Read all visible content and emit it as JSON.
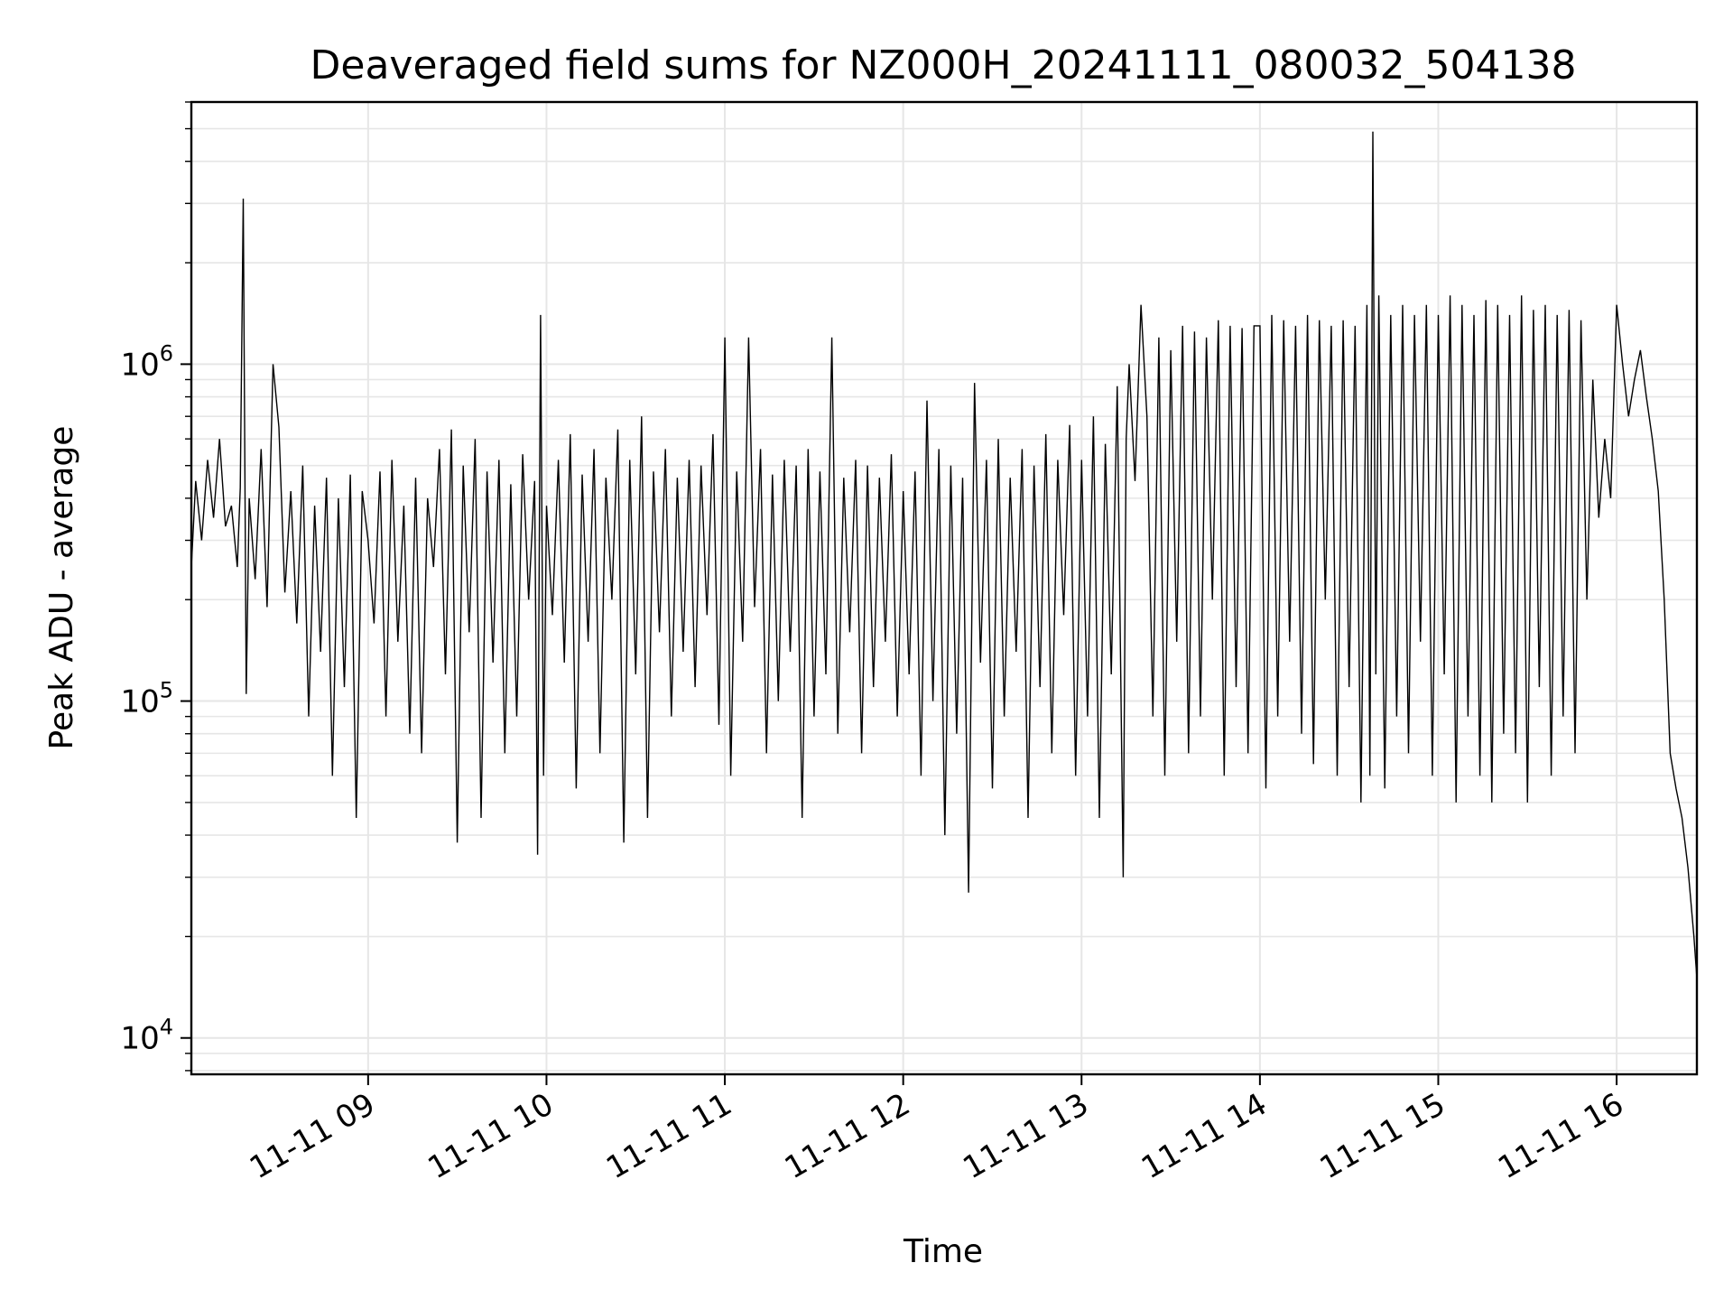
{
  "chart_data": {
    "type": "line",
    "title": "Deaveraged field sums for NZ000H_20241111_080032_504138",
    "xlabel": "Time",
    "ylabel": "Peak ADU - average",
    "y_scale": "log",
    "grid": true,
    "line_color": "#000000",
    "grid_color": "#e6e6e6",
    "xlim": [
      "2024-11-11 08:00:32",
      "2024-11-11 16:27:00"
    ],
    "ylim": [
      7800,
      6000000
    ],
    "x_ticks": [
      {
        "value": "2024-11-11 09:00",
        "label": "11-11 09"
      },
      {
        "value": "2024-11-11 10:00",
        "label": "11-11 10"
      },
      {
        "value": "2024-11-11 11:00",
        "label": "11-11 11"
      },
      {
        "value": "2024-11-11 12:00",
        "label": "11-11 12"
      },
      {
        "value": "2024-11-11 13:00",
        "label": "11-11 13"
      },
      {
        "value": "2024-11-11 14:00",
        "label": "11-11 14"
      },
      {
        "value": "2024-11-11 15:00",
        "label": "11-11 15"
      },
      {
        "value": "2024-11-11 16:00",
        "label": "11-11 16"
      }
    ],
    "y_ticks": [
      {
        "value": 10000,
        "base": "10",
        "exp": "4"
      },
      {
        "value": 100000,
        "base": "10",
        "exp": "5"
      },
      {
        "value": 1000000,
        "base": "10",
        "exp": "6"
      }
    ],
    "series": [
      {
        "x": [
          "2024-11-11 08:00:32",
          "2024-11-11 08:02",
          "2024-11-11 08:04",
          "2024-11-11 08:06",
          "2024-11-11 08:08",
          "2024-11-11 08:10",
          "2024-11-11 08:12",
          "2024-11-11 08:14",
          "2024-11-11 08:16",
          "2024-11-11 08:17",
          "2024-11-11 08:18",
          "2024-11-11 08:19",
          "2024-11-11 08:20",
          "2024-11-11 08:22",
          "2024-11-11 08:24",
          "2024-11-11 08:26",
          "2024-11-11 08:28",
          "2024-11-11 08:30",
          "2024-11-11 08:32",
          "2024-11-11 08:34",
          "2024-11-11 08:36",
          "2024-11-11 08:38",
          "2024-11-11 08:40",
          "2024-11-11 08:42",
          "2024-11-11 08:44",
          "2024-11-11 08:46",
          "2024-11-11 08:48",
          "2024-11-11 08:50",
          "2024-11-11 08:52",
          "2024-11-11 08:54",
          "2024-11-11 08:56",
          "2024-11-11 08:58",
          "2024-11-11 09:00",
          "2024-11-11 09:02",
          "2024-11-11 09:04",
          "2024-11-11 09:06",
          "2024-11-11 09:08",
          "2024-11-11 09:10",
          "2024-11-11 09:12",
          "2024-11-11 09:14",
          "2024-11-11 09:16",
          "2024-11-11 09:18",
          "2024-11-11 09:20",
          "2024-11-11 09:22",
          "2024-11-11 09:24",
          "2024-11-11 09:26",
          "2024-11-11 09:28",
          "2024-11-11 09:30",
          "2024-11-11 09:32",
          "2024-11-11 09:34",
          "2024-11-11 09:36",
          "2024-11-11 09:38",
          "2024-11-11 09:40",
          "2024-11-11 09:42",
          "2024-11-11 09:44",
          "2024-11-11 09:46",
          "2024-11-11 09:48",
          "2024-11-11 09:50",
          "2024-11-11 09:52",
          "2024-11-11 09:54",
          "2024-11-11 09:56",
          "2024-11-11 09:57",
          "2024-11-11 09:58",
          "2024-11-11 09:59",
          "2024-11-11 10:00",
          "2024-11-11 10:02",
          "2024-11-11 10:04",
          "2024-11-11 10:06",
          "2024-11-11 10:08",
          "2024-11-11 10:10",
          "2024-11-11 10:12",
          "2024-11-11 10:14",
          "2024-11-11 10:16",
          "2024-11-11 10:18",
          "2024-11-11 10:20",
          "2024-11-11 10:22",
          "2024-11-11 10:24",
          "2024-11-11 10:26",
          "2024-11-11 10:28",
          "2024-11-11 10:30",
          "2024-11-11 10:32",
          "2024-11-11 10:34",
          "2024-11-11 10:36",
          "2024-11-11 10:38",
          "2024-11-11 10:40",
          "2024-11-11 10:42",
          "2024-11-11 10:44",
          "2024-11-11 10:46",
          "2024-11-11 10:48",
          "2024-11-11 10:50",
          "2024-11-11 10:52",
          "2024-11-11 10:54",
          "2024-11-11 10:56",
          "2024-11-11 10:58",
          "2024-11-11 11:00",
          "2024-11-11 11:02",
          "2024-11-11 11:04",
          "2024-11-11 11:06",
          "2024-11-11 11:08",
          "2024-11-11 11:10",
          "2024-11-11 11:12",
          "2024-11-11 11:14",
          "2024-11-11 11:16",
          "2024-11-11 11:18",
          "2024-11-11 11:20",
          "2024-11-11 11:22",
          "2024-11-11 11:24",
          "2024-11-11 11:26",
          "2024-11-11 11:28",
          "2024-11-11 11:30",
          "2024-11-11 11:32",
          "2024-11-11 11:34",
          "2024-11-11 11:36",
          "2024-11-11 11:38",
          "2024-11-11 11:40",
          "2024-11-11 11:42",
          "2024-11-11 11:44",
          "2024-11-11 11:46",
          "2024-11-11 11:48",
          "2024-11-11 11:50",
          "2024-11-11 11:52",
          "2024-11-11 11:54",
          "2024-11-11 11:56",
          "2024-11-11 11:58",
          "2024-11-11 12:00",
          "2024-11-11 12:02",
          "2024-11-11 12:04",
          "2024-11-11 12:06",
          "2024-11-11 12:08",
          "2024-11-11 12:10",
          "2024-11-11 12:12",
          "2024-11-11 12:14",
          "2024-11-11 12:16",
          "2024-11-11 12:18",
          "2024-11-11 12:20",
          "2024-11-11 12:22",
          "2024-11-11 12:24",
          "2024-11-11 12:26",
          "2024-11-11 12:28",
          "2024-11-11 12:30",
          "2024-11-11 12:32",
          "2024-11-11 12:34",
          "2024-11-11 12:36",
          "2024-11-11 12:38",
          "2024-11-11 12:40",
          "2024-11-11 12:42",
          "2024-11-11 12:44",
          "2024-11-11 12:46",
          "2024-11-11 12:48",
          "2024-11-11 12:50",
          "2024-11-11 12:52",
          "2024-11-11 12:54",
          "2024-11-11 12:56",
          "2024-11-11 12:58",
          "2024-11-11 13:00",
          "2024-11-11 13:02",
          "2024-11-11 13:04",
          "2024-11-11 13:06",
          "2024-11-11 13:08",
          "2024-11-11 13:10",
          "2024-11-11 13:12",
          "2024-11-11 13:14",
          "2024-11-11 13:15",
          "2024-11-11 13:16",
          "2024-11-11 13:18",
          "2024-11-11 13:20",
          "2024-11-11 13:22",
          "2024-11-11 13:24",
          "2024-11-11 13:26",
          "2024-11-11 13:28",
          "2024-11-11 13:30",
          "2024-11-11 13:32",
          "2024-11-11 13:34",
          "2024-11-11 13:36",
          "2024-11-11 13:38",
          "2024-11-11 13:40",
          "2024-11-11 13:42",
          "2024-11-11 13:44",
          "2024-11-11 13:46",
          "2024-11-11 13:48",
          "2024-11-11 13:50",
          "2024-11-11 13:52",
          "2024-11-11 13:54",
          "2024-11-11 13:56",
          "2024-11-11 13:58",
          "2024-11-11 14:00",
          "2024-11-11 14:02",
          "2024-11-11 14:04",
          "2024-11-11 14:06",
          "2024-11-11 14:08",
          "2024-11-11 14:10",
          "2024-11-11 14:12",
          "2024-11-11 14:14",
          "2024-11-11 14:16",
          "2024-11-11 14:18",
          "2024-11-11 14:20",
          "2024-11-11 14:22",
          "2024-11-11 14:24",
          "2024-11-11 14:26",
          "2024-11-11 14:28",
          "2024-11-11 14:30",
          "2024-11-11 14:32",
          "2024-11-11 14:34",
          "2024-11-11 14:36",
          "2024-11-11 14:37",
          "2024-11-11 14:38",
          "2024-11-11 14:39",
          "2024-11-11 14:40",
          "2024-11-11 14:42",
          "2024-11-11 14:44",
          "2024-11-11 14:46",
          "2024-11-11 14:48",
          "2024-11-11 14:50",
          "2024-11-11 14:52",
          "2024-11-11 14:54",
          "2024-11-11 14:56",
          "2024-11-11 14:58",
          "2024-11-11 15:00",
          "2024-11-11 15:02",
          "2024-11-11 15:04",
          "2024-11-11 15:06",
          "2024-11-11 15:08",
          "2024-11-11 15:10",
          "2024-11-11 15:12",
          "2024-11-11 15:14",
          "2024-11-11 15:16",
          "2024-11-11 15:18",
          "2024-11-11 15:20",
          "2024-11-11 15:22",
          "2024-11-11 15:24",
          "2024-11-11 15:26",
          "2024-11-11 15:28",
          "2024-11-11 15:30",
          "2024-11-11 15:32",
          "2024-11-11 15:34",
          "2024-11-11 15:36",
          "2024-11-11 15:38",
          "2024-11-11 15:40",
          "2024-11-11 15:42",
          "2024-11-11 15:44",
          "2024-11-11 15:46",
          "2024-11-11 15:48",
          "2024-11-11 15:50",
          "2024-11-11 15:52",
          "2024-11-11 15:54",
          "2024-11-11 15:56",
          "2024-11-11 15:58",
          "2024-11-11 16:00",
          "2024-11-11 16:02",
          "2024-11-11 16:04",
          "2024-11-11 16:06",
          "2024-11-11 16:08",
          "2024-11-11 16:10",
          "2024-11-11 16:12",
          "2024-11-11 16:14",
          "2024-11-11 16:16",
          "2024-11-11 16:18",
          "2024-11-11 16:20",
          "2024-11-11 16:22",
          "2024-11-11 16:24",
          "2024-11-11 16:26",
          "2024-11-11 16:27"
        ],
        "y": [
          250000,
          450000,
          300000,
          520000,
          350000,
          600000,
          330000,
          380000,
          250000,
          430000,
          3100000,
          105000,
          400000,
          230000,
          560000,
          190000,
          1000000,
          650000,
          210000,
          420000,
          170000,
          500000,
          90000,
          380000,
          140000,
          460000,
          60000,
          400000,
          110000,
          470000,
          45000,
          420000,
          300000,
          170000,
          480000,
          90000,
          520000,
          150000,
          380000,
          80000,
          460000,
          70000,
          400000,
          250000,
          560000,
          120000,
          640000,
          38000,
          500000,
          160000,
          600000,
          45000,
          480000,
          130000,
          520000,
          70000,
          440000,
          90000,
          540000,
          200000,
          450000,
          35000,
          1400000,
          60000,
          380000,
          180000,
          520000,
          130000,
          620000,
          55000,
          470000,
          150000,
          560000,
          70000,
          460000,
          200000,
          640000,
          38000,
          520000,
          120000,
          700000,
          45000,
          480000,
          160000,
          560000,
          90000,
          460000,
          140000,
          520000,
          110000,
          500000,
          180000,
          620000,
          85000,
          1200000,
          60000,
          480000,
          150000,
          1200000,
          190000,
          560000,
          70000,
          470000,
          100000,
          520000,
          140000,
          500000,
          45000,
          560000,
          90000,
          480000,
          120000,
          1200000,
          80000,
          460000,
          160000,
          520000,
          70000,
          500000,
          110000,
          460000,
          150000,
          540000,
          90000,
          420000,
          120000,
          480000,
          60000,
          780000,
          100000,
          560000,
          40000,
          500000,
          80000,
          460000,
          27000,
          880000,
          130000,
          520000,
          55000,
          600000,
          90000,
          460000,
          140000,
          560000,
          45000,
          500000,
          110000,
          620000,
          70000,
          520000,
          180000,
          660000,
          60000,
          520000,
          90000,
          700000,
          45000,
          580000,
          120000,
          860000,
          30000,
          600000,
          1000000,
          450000,
          1500000,
          700000,
          90000,
          1200000,
          60000,
          1100000,
          150000,
          1300000,
          70000,
          1250000,
          90000,
          1200000,
          200000,
          1350000,
          60000,
          1300000,
          110000,
          1280000,
          70000,
          1300000,
          1300000,
          55000,
          1400000,
          90000,
          1350000,
          150000,
          1300000,
          80000,
          1400000,
          65000,
          1350000,
          200000,
          1300000,
          60000,
          1350000,
          110000,
          1300000,
          50000,
          1500000,
          60000,
          4900000,
          120000,
          1600000,
          55000,
          1400000,
          90000,
          1500000,
          70000,
          1400000,
          150000,
          1500000,
          60000,
          1400000,
          120000,
          1600000,
          50000,
          1500000,
          90000,
          1400000,
          60000,
          1550000,
          50000,
          1500000,
          80000,
          1400000,
          70000,
          1600000,
          50000,
          1450000,
          110000,
          1500000,
          60000,
          1400000,
          90000,
          1450000,
          70000,
          1350000,
          200000,
          900000,
          350000,
          600000,
          400000,
          1500000,
          1000000,
          700000,
          900000,
          1100000,
          800000,
          600000,
          420000,
          200000,
          70000,
          55000,
          45000,
          32000,
          20000,
          15000
        ]
      }
    ]
  }
}
